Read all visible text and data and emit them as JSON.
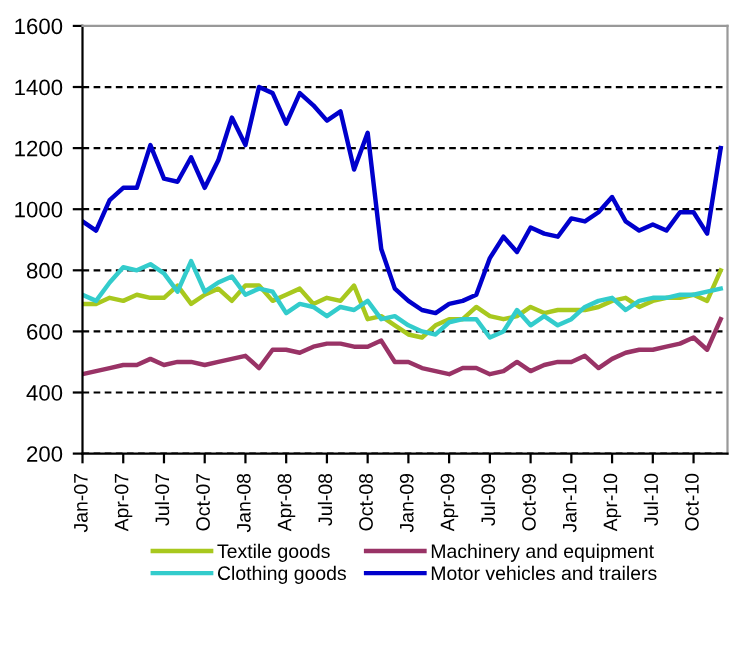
{
  "chart_data": {
    "type": "line",
    "categories": [
      "Jan-07",
      null,
      null,
      "Apr-07",
      null,
      null,
      "Jul-07",
      null,
      null,
      "Oct-07",
      null,
      null,
      "Jan-08",
      null,
      null,
      "Apr-08",
      null,
      null,
      "Jul-08",
      null,
      null,
      "Oct-08",
      null,
      null,
      "Jan-09",
      null,
      null,
      "Apr-09",
      null,
      null,
      "Jul-09",
      null,
      null,
      "Oct-09",
      null,
      null,
      "Jan-10",
      null,
      null,
      "Apr-10",
      null,
      null,
      "Jul-10",
      null,
      null,
      "Oct-10",
      null,
      null
    ],
    "series": [
      {
        "name": "Textile goods",
        "color": "#a8c81e",
        "values": [
          690,
          690,
          710,
          700,
          720,
          710,
          710,
          750,
          690,
          720,
          740,
          700,
          750,
          750,
          700,
          720,
          740,
          690,
          710,
          700,
          750,
          640,
          650,
          620,
          590,
          580,
          620,
          640,
          640,
          680,
          650,
          640,
          650,
          680,
          660,
          670,
          670,
          670,
          680,
          700,
          710,
          680,
          700,
          710,
          710,
          720,
          700,
          800
        ]
      },
      {
        "name": "Clothing goods",
        "color": "#33cccc",
        "values": [
          720,
          700,
          760,
          810,
          800,
          820,
          790,
          730,
          830,
          730,
          760,
          780,
          720,
          740,
          730,
          660,
          690,
          680,
          650,
          680,
          670,
          700,
          640,
          650,
          620,
          600,
          590,
          630,
          640,
          640,
          580,
          600,
          670,
          620,
          650,
          620,
          640,
          680,
          700,
          710,
          670,
          700,
          710,
          710,
          720,
          720,
          730,
          740
        ]
      },
      {
        "name": "Machinery and equipment",
        "color": "#993366",
        "values": [
          460,
          470,
          480,
          490,
          490,
          510,
          490,
          500,
          500,
          490,
          500,
          510,
          520,
          480,
          540,
          540,
          530,
          550,
          560,
          560,
          550,
          550,
          570,
          500,
          500,
          480,
          470,
          460,
          480,
          480,
          460,
          470,
          500,
          470,
          490,
          500,
          500,
          520,
          480,
          510,
          530,
          540,
          540,
          550,
          560,
          580,
          540,
          640
        ]
      },
      {
        "name": "Motor vehicles and trailers",
        "color": "#0000cc",
        "values": [
          960,
          930,
          1030,
          1070,
          1070,
          1210,
          1100,
          1090,
          1170,
          1070,
          1160,
          1300,
          1210,
          1400,
          1380,
          1280,
          1380,
          1340,
          1290,
          1320,
          1130,
          1250,
          870,
          740,
          700,
          670,
          660,
          690,
          700,
          720,
          840,
          910,
          860,
          940,
          920,
          910,
          970,
          960,
          990,
          1040,
          960,
          930,
          950,
          930,
          990,
          990,
          920,
          1200
        ]
      }
    ],
    "ylim": [
      200,
      1600
    ],
    "yticks": [
      200,
      400,
      600,
      800,
      1000,
      1200,
      1400,
      1600
    ],
    "grid": "y",
    "legend": "bottom",
    "marker": "none",
    "line_style": "solid"
  }
}
